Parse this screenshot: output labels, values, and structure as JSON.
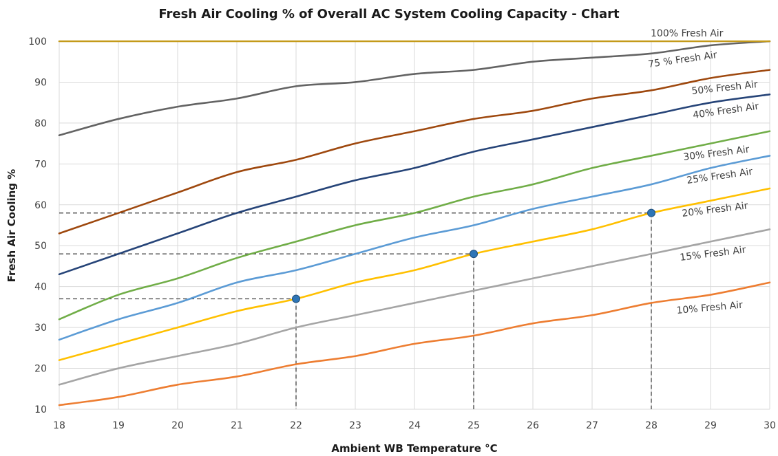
{
  "chart_data": {
    "type": "line",
    "title": "Fresh Air Cooling  % of Overall AC System Cooling Capacity - Chart",
    "xlabel": "Ambient WB  Temperature °C",
    "ylabel": "Fresh Air Cooling %",
    "x": [
      18,
      19,
      20,
      21,
      22,
      23,
      24,
      25,
      26,
      27,
      28,
      29,
      30
    ],
    "xlim": [
      18,
      30
    ],
    "ylim": [
      10,
      100
    ],
    "yticks": [
      10,
      20,
      30,
      40,
      50,
      60,
      70,
      80,
      90,
      100
    ],
    "grid": "vertical and horizontal, light grey",
    "legend": "inline labels at right end of each line",
    "series": [
      {
        "name": "10% Fresh Air",
        "color": "#ED7D31",
        "values": [
          11,
          13,
          16,
          18,
          21,
          23,
          26,
          28,
          31,
          33,
          36,
          38,
          41
        ]
      },
      {
        "name": "15% Fresh Air",
        "color": "#A5A5A5",
        "values": [
          16,
          20,
          23,
          26,
          30,
          33,
          36,
          39,
          42,
          45,
          48,
          51,
          54
        ]
      },
      {
        "name": "20% Fresh Air",
        "color": "#FFC000",
        "values": [
          22,
          26,
          30,
          34,
          37,
          41,
          44,
          48,
          51,
          54,
          58,
          61,
          64
        ]
      },
      {
        "name": "25% Fresh Air",
        "color": "#5B9BD5",
        "values": [
          27,
          32,
          36,
          41,
          44,
          48,
          52,
          55,
          59,
          62,
          65,
          69,
          72
        ]
      },
      {
        "name": "30% Fresh Air",
        "color": "#70AD47",
        "values": [
          32,
          38,
          42,
          47,
          51,
          55,
          58,
          62,
          65,
          69,
          72,
          75,
          78
        ]
      },
      {
        "name": "40% Fresh Air",
        "color": "#264478",
        "values": [
          43,
          48,
          53,
          58,
          62,
          66,
          69,
          73,
          76,
          79,
          82,
          85,
          87
        ]
      },
      {
        "name": "50% Fresh Air",
        "color": "#9E480E",
        "values": [
          53,
          58,
          63,
          68,
          71,
          75,
          78,
          81,
          83,
          86,
          88,
          91,
          93
        ]
      },
      {
        "name": "75 % Fresh Air",
        "color": "#636363",
        "values": [
          77,
          81,
          84,
          86,
          89,
          90,
          92,
          93,
          95,
          96,
          97,
          99,
          100
        ]
      },
      {
        "name": "100% Fresh Air",
        "color": "#C49A1A",
        "values": [
          100,
          100,
          100,
          100,
          100,
          100,
          100,
          100,
          100,
          100,
          100,
          100,
          100
        ]
      }
    ],
    "annotations": [
      {
        "x": 22,
        "y": 37,
        "series": "20% Fresh Air",
        "marker_color": "#2E75B6"
      },
      {
        "x": 25,
        "y": 48,
        "series": "20% Fresh Air",
        "marker_color": "#2E75B6"
      },
      {
        "x": 28,
        "y": 58,
        "series": "20% Fresh Air",
        "marker_color": "#2E75B6"
      }
    ]
  }
}
